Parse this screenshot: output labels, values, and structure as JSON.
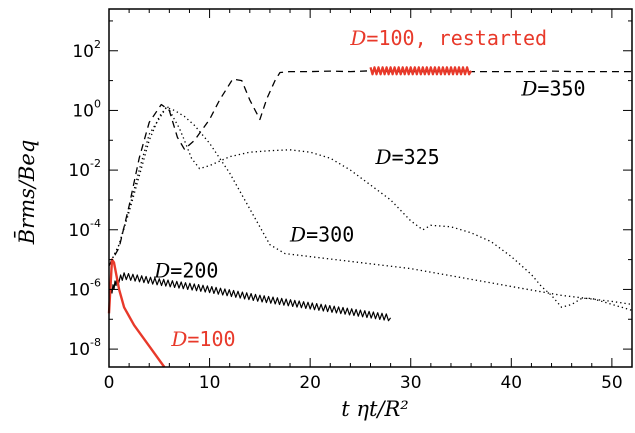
{
  "chart_data": {
    "type": "line",
    "xlabel": "t ηt/R²",
    "ylabel": "B̄rms/Beq",
    "xlim": [
      0,
      52
    ],
    "ylim_log10": [
      -8.6,
      3.4
    ],
    "yscale": "log",
    "x_ticks": [
      {
        "value": 0,
        "label": "0"
      },
      {
        "value": 10,
        "label": "10"
      },
      {
        "value": 20,
        "label": "20"
      },
      {
        "value": 30,
        "label": "30"
      },
      {
        "value": 40,
        "label": "40"
      },
      {
        "value": 50,
        "label": "50"
      }
    ],
    "y_ticks": [
      {
        "exp": 2,
        "base": "10",
        "power": "2"
      },
      {
        "exp": 0,
        "base": "10",
        "power": "0"
      },
      {
        "exp": -2,
        "base": "10",
        "power": "-2"
      },
      {
        "exp": -4,
        "base": "10",
        "power": "-4"
      },
      {
        "exp": -6,
        "base": "10",
        "power": "-6"
      },
      {
        "exp": -8,
        "base": "10",
        "power": "-8"
      }
    ],
    "series": [
      {
        "name": "D=350",
        "color": "#000000",
        "style": "dashed",
        "label_pos": {
          "x": 41,
          "y": 0.5
        },
        "points": [
          [
            0,
            -5.2
          ],
          [
            1,
            -4.6
          ],
          [
            2,
            -3.2
          ],
          [
            3,
            -1.6
          ],
          [
            4,
            -0.4
          ],
          [
            5.2,
            0.2
          ],
          [
            6,
            0.0
          ],
          [
            6.8,
            -0.9
          ],
          [
            7.5,
            -1.3
          ],
          [
            8.5,
            -1.0
          ],
          [
            10,
            -0.3
          ],
          [
            11,
            0.35
          ],
          [
            12.3,
            1.05
          ],
          [
            13.2,
            1.0
          ],
          [
            14,
            0.35
          ],
          [
            15,
            -0.3
          ],
          [
            15.7,
            0.4
          ],
          [
            16.5,
            1.0
          ],
          [
            17,
            1.27
          ],
          [
            18,
            1.3
          ],
          [
            20,
            1.3
          ],
          [
            22,
            1.32
          ],
          [
            24,
            1.3
          ],
          [
            26,
            1.33
          ],
          [
            28,
            1.3
          ],
          [
            30,
            1.3
          ],
          [
            32,
            1.3
          ],
          [
            34,
            1.3
          ],
          [
            36,
            1.3
          ],
          [
            38,
            1.3
          ],
          [
            40,
            1.3
          ],
          [
            42,
            1.3
          ],
          [
            44,
            1.32
          ],
          [
            46,
            1.3
          ],
          [
            48,
            1.3
          ],
          [
            50,
            1.3
          ],
          [
            52,
            1.3
          ]
        ]
      },
      {
        "name": "D=325",
        "color": "#000000",
        "style": "dotted",
        "label_pos": {
          "x": 26.5,
          "y": -1.8
        },
        "points": [
          [
            0,
            -5.2
          ],
          [
            1,
            -4.5
          ],
          [
            2,
            -3.3
          ],
          [
            3,
            -2.0
          ],
          [
            4,
            -0.8
          ],
          [
            5.8,
            0.15
          ],
          [
            6.5,
            -0.3
          ],
          [
            7,
            -0.6
          ],
          [
            7.5,
            -1.0
          ],
          [
            8.2,
            -1.6
          ],
          [
            9,
            -1.95
          ],
          [
            10,
            -1.85
          ],
          [
            12,
            -1.55
          ],
          [
            14,
            -1.4
          ],
          [
            16,
            -1.35
          ],
          [
            18,
            -1.32
          ],
          [
            20,
            -1.4
          ],
          [
            22,
            -1.6
          ],
          [
            24,
            -2.0
          ],
          [
            26,
            -2.5
          ],
          [
            28,
            -3.0
          ],
          [
            30,
            -3.7
          ],
          [
            31.2,
            -4.0
          ],
          [
            32,
            -3.85
          ],
          [
            34,
            -3.9
          ],
          [
            36,
            -4.1
          ],
          [
            38,
            -4.4
          ],
          [
            40,
            -4.9
          ],
          [
            42,
            -5.5
          ],
          [
            43,
            -5.9
          ],
          [
            44,
            -6.2
          ],
          [
            45,
            -6.6
          ],
          [
            46,
            -6.5
          ],
          [
            47,
            -6.3
          ],
          [
            48,
            -6.3
          ],
          [
            50,
            -6.5
          ],
          [
            52,
            -6.7
          ]
        ]
      },
      {
        "name": "D=300",
        "color": "#000000",
        "style": "dotted",
        "label_pos": {
          "x": 18,
          "y": -4.4
        },
        "points": [
          [
            0,
            -5.2
          ],
          [
            1,
            -4.5
          ],
          [
            2,
            -3.4
          ],
          [
            3,
            -2.2
          ],
          [
            4,
            -1.0
          ],
          [
            5,
            -0.2
          ],
          [
            5.7,
            0.1
          ],
          [
            6.5,
            0.0
          ],
          [
            7.5,
            -0.2
          ],
          [
            8.5,
            -0.5
          ],
          [
            10,
            -1.1
          ],
          [
            12,
            -2.1
          ],
          [
            14,
            -3.3
          ],
          [
            16,
            -4.5
          ],
          [
            17.5,
            -4.8
          ],
          [
            20,
            -4.9
          ],
          [
            25,
            -5.1
          ],
          [
            30,
            -5.3
          ],
          [
            35,
            -5.6
          ],
          [
            40,
            -5.9
          ],
          [
            45,
            -6.2
          ],
          [
            50,
            -6.4
          ],
          [
            52,
            -6.5
          ]
        ]
      },
      {
        "name": "D=200",
        "color": "#000000",
        "style": "zigzag",
        "label_pos": {
          "x": 4.5,
          "y": -5.6
        },
        "points": [
          [
            0,
            -6.2
          ],
          [
            0.8,
            -5.7
          ],
          [
            1.5,
            -5.55
          ],
          [
            5,
            -5.75
          ],
          [
            10,
            -6.0
          ],
          [
            15,
            -6.3
          ],
          [
            20,
            -6.55
          ],
          [
            25,
            -6.8
          ],
          [
            28,
            -6.95
          ]
        ]
      },
      {
        "name": "D=100",
        "color": "#e8392a",
        "style": "solid",
        "label_pos": {
          "x": 6.2,
          "y": -7.9
        },
        "points": [
          [
            0,
            -6.8
          ],
          [
            0.3,
            -5.0
          ],
          [
            0.5,
            -5.1
          ],
          [
            1,
            -6.0
          ],
          [
            1.5,
            -6.6
          ],
          [
            2.5,
            -7.2
          ],
          [
            4,
            -7.9
          ],
          [
            5.5,
            -8.6
          ]
        ]
      },
      {
        "name": "D=100, restarted",
        "color": "#e8392a",
        "style": "zigzag-thick",
        "label_pos": {
          "x": 24,
          "y": 2.2
        },
        "points": [
          [
            26,
            1.33
          ],
          [
            36,
            1.33
          ]
        ]
      }
    ]
  }
}
